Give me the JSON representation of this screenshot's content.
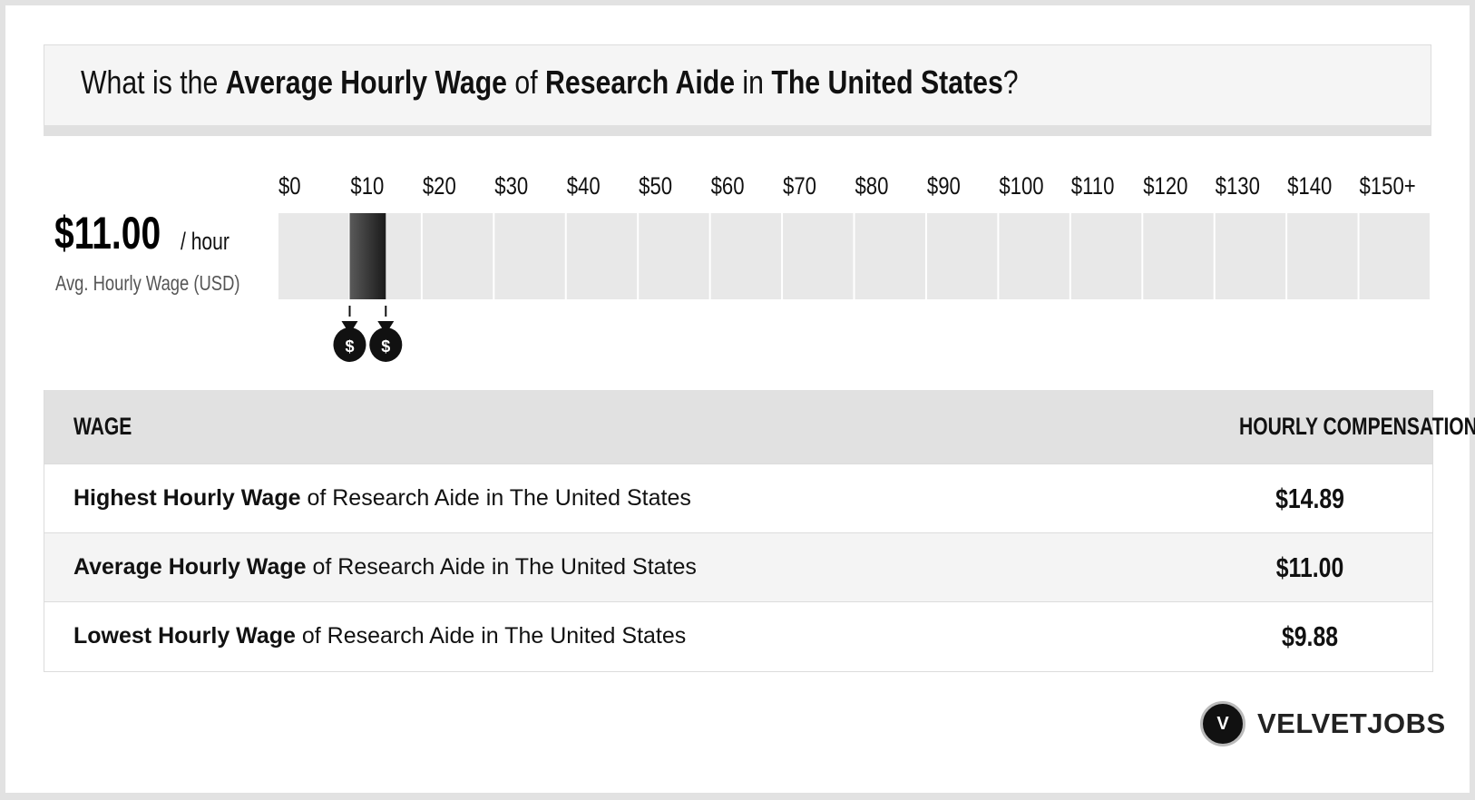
{
  "title": {
    "prefix": "What is the ",
    "metric": "Average Hourly Wage",
    "of": " of ",
    "job": "Research Aide",
    "in": " in ",
    "location": "The United States",
    "suffix": "?"
  },
  "summary": {
    "value": "$11.00",
    "unit": "/ hour",
    "label": "Avg. Hourly Wage (USD)"
  },
  "chart_data": {
    "type": "bar",
    "orientation": "horizontal-range",
    "ticks": [
      "$0",
      "$10",
      "$20",
      "$30",
      "$40",
      "$50",
      "$60",
      "$70",
      "$80",
      "$90",
      "$100",
      "$110",
      "$120",
      "$130",
      "$140",
      "$150+"
    ],
    "xlim": [
      0,
      150
    ],
    "range": {
      "low": 9.88,
      "high": 14.89,
      "average": 11.0
    },
    "markers": [
      "money-bag-low",
      "money-bag-high"
    ],
    "colors": {
      "track": "#e8e8e8",
      "bar_dark": "#1a1a1a",
      "bar_light": "#5a5a5a",
      "divider": "#ffffff"
    }
  },
  "table": {
    "header_left": "WAGE",
    "header_right": "HOURLY COMPENSATION",
    "rows": [
      {
        "bold": "Highest Hourly Wage",
        "rest": " of Research Aide in The United States",
        "value": "$14.89"
      },
      {
        "bold": "Average Hourly Wage",
        "rest": " of Research Aide in The United States",
        "value": "$11.00"
      },
      {
        "bold": "Lowest Hourly Wage",
        "rest": " of Research Aide in The United States",
        "value": "$9.88"
      }
    ]
  },
  "logo": {
    "mark": "V",
    "text": "VELVETJOBS"
  },
  "marker_symbol": "$"
}
